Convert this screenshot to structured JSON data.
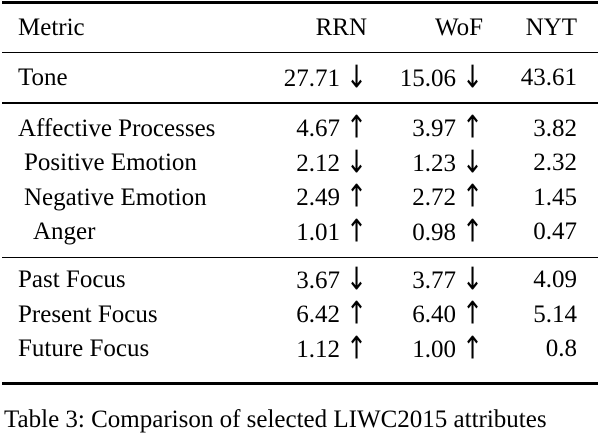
{
  "header": {
    "metric": "Metric",
    "col1": "RRN",
    "col2": "WoF",
    "col3": "NYT"
  },
  "rows": [
    {
      "metric": "Tone",
      "rrn": "27.71",
      "rrn_arrow": "↓",
      "wof": "15.06",
      "wof_arrow": "↓",
      "nyt": "43.61"
    },
    {
      "metric": "Affective Processes",
      "rrn": "4.67",
      "rrn_arrow": "↑",
      "wof": "3.97",
      "wof_arrow": "↑",
      "nyt": "3.82"
    },
    {
      "metric": "Positive Emotion",
      "rrn": "2.12",
      "rrn_arrow": "↓",
      "wof": "1.23",
      "wof_arrow": "↓",
      "nyt": "2.32"
    },
    {
      "metric": "Negative Emotion",
      "rrn": "2.49",
      "rrn_arrow": "↑",
      "wof": "2.72",
      "wof_arrow": "↑",
      "nyt": "1.45"
    },
    {
      "metric": "Anger",
      "rrn": "1.01",
      "rrn_arrow": "↑",
      "wof": "0.98",
      "wof_arrow": "↑",
      "nyt": "0.47"
    },
    {
      "metric": "Past Focus",
      "rrn": "3.67",
      "rrn_arrow": "↓",
      "wof": "3.77",
      "wof_arrow": "↓",
      "nyt": "4.09"
    },
    {
      "metric": "Present Focus",
      "rrn": "6.42",
      "rrn_arrow": "↑",
      "wof": "6.40",
      "wof_arrow": "↑",
      "nyt": "5.14"
    },
    {
      "metric": "Future Focus",
      "rrn": "1.12",
      "rrn_arrow": "↑",
      "wof": "1.00",
      "wof_arrow": "↑",
      "nyt": "0.8"
    }
  ],
  "caption": "Table 3: Comparison of selected LIWC2015 attributes",
  "colors": {
    "text": "#000000",
    "background": "#ffffff",
    "rule": "#000000"
  }
}
